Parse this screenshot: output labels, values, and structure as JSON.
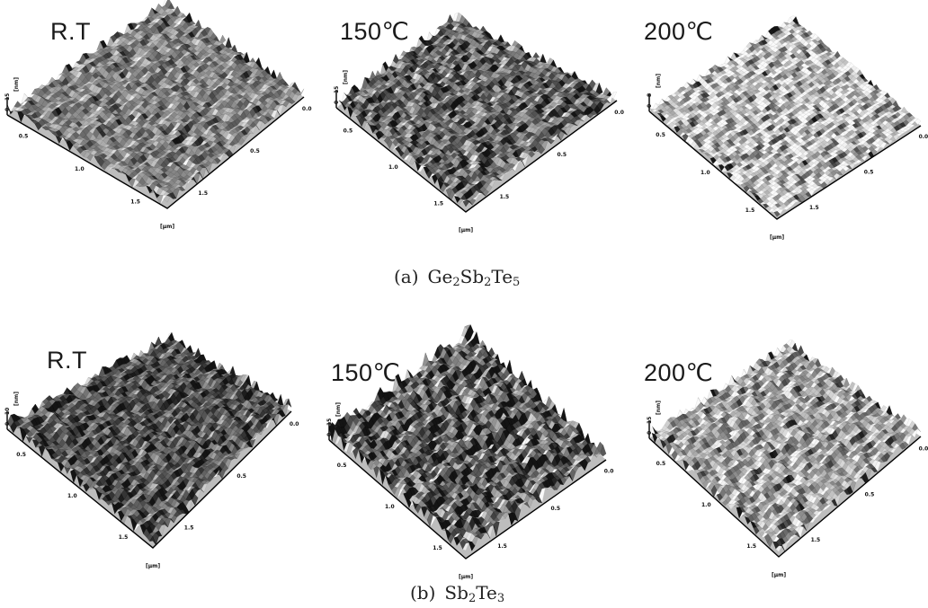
{
  "rows": [
    {
      "caption_prefix": "(a)",
      "caption_parts": [
        {
          "t": "Ge",
          "sub": false
        },
        {
          "t": "2",
          "sub": true
        },
        {
          "t": "Sb",
          "sub": false
        },
        {
          "t": "2",
          "sub": true
        },
        {
          "t": "Te",
          "sub": false
        },
        {
          "t": "5",
          "sub": true
        }
      ],
      "panels": [
        {
          "temp": "R.T",
          "z_label": "[nm]",
          "z_ticks": [
            "0",
            "15"
          ],
          "axis_unit": "[µm]",
          "x_ticks": [
            "0.5",
            "1.0",
            "1.5"
          ],
          "y_ticks": [
            "0.0",
            "0.5",
            "1.5"
          ]
        },
        {
          "temp": "150℃",
          "z_label": "[nm]",
          "z_ticks": [
            "0",
            "15"
          ],
          "axis_unit": "[µm]",
          "x_ticks": [
            "0.5",
            "1.0",
            "1.5"
          ],
          "y_ticks": [
            "0.0",
            "0.5",
            "1.5"
          ]
        },
        {
          "temp": "200℃",
          "z_label": "[nm]",
          "z_ticks": [
            "0",
            "8"
          ],
          "axis_unit": "[µm]",
          "x_ticks": [
            "0.5",
            "1.0",
            "1.5"
          ],
          "y_ticks": [
            "0.0",
            "0.5",
            "1.5"
          ]
        }
      ]
    },
    {
      "caption_prefix": "(b)",
      "caption_parts": [
        {
          "t": "Sb",
          "sub": false
        },
        {
          "t": "2",
          "sub": true
        },
        {
          "t": "Te",
          "sub": false
        },
        {
          "t": "3",
          "sub": true
        }
      ],
      "panels": [
        {
          "temp": "R.T",
          "z_label": "[nm]",
          "z_ticks": [
            "0",
            "10"
          ],
          "axis_unit": "[µm]",
          "x_ticks": [
            "0.5",
            "1.0",
            "1.5"
          ],
          "y_ticks": [
            "0.0",
            "0.5",
            "1.5"
          ]
        },
        {
          "temp": "150℃",
          "z_label": "[nm]",
          "z_ticks": [
            "0",
            "15"
          ],
          "axis_unit": "[µm]",
          "x_ticks": [
            "0.5",
            "1.0",
            "1.5"
          ],
          "y_ticks": [
            "0.0",
            "0.5",
            "1.5"
          ]
        },
        {
          "temp": "200℃",
          "z_label": "[nm]",
          "z_ticks": [
            "0",
            "15"
          ],
          "axis_unit": "[µm]",
          "x_ticks": [
            "0.5",
            "1.0",
            "1.5"
          ],
          "y_ticks": [
            "0.0",
            "0.5",
            "1.5"
          ]
        }
      ]
    }
  ]
}
